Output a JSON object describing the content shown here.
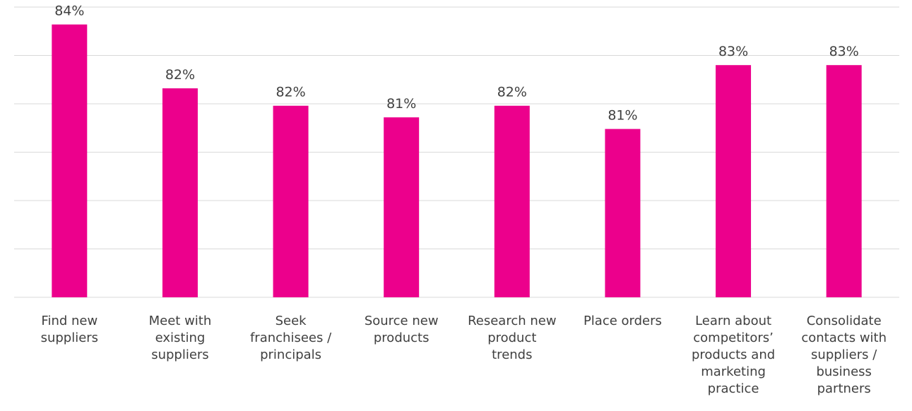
{
  "chart_data": {
    "type": "bar",
    "title": "",
    "xlabel": "",
    "ylabel": "",
    "categories": [
      [
        "Find new",
        "suppliers"
      ],
      [
        "Meet with",
        "existing",
        "suppliers"
      ],
      [
        "Seek",
        "franchisees /",
        "principals"
      ],
      [
        "Source new",
        "products"
      ],
      [
        "Research new",
        "product",
        "trends"
      ],
      [
        "Place orders"
      ],
      [
        "Learn about",
        "competitors’",
        "products and",
        "marketing",
        "practice"
      ],
      [
        "Consolidate",
        "contacts with",
        "suppliers /",
        "business",
        "partners"
      ]
    ],
    "values": [
      84.4,
      82.2,
      81.6,
      81.2,
      81.6,
      80.8,
      83.0,
      83.0
    ],
    "data_labels": [
      "84%",
      "82%",
      "82%",
      "81%",
      "82%",
      "81%",
      "83%",
      "83%"
    ],
    "ylim": [
      75.0,
      85.0
    ],
    "grid": true,
    "legend": "none",
    "bar_color": "#ec008c"
  }
}
